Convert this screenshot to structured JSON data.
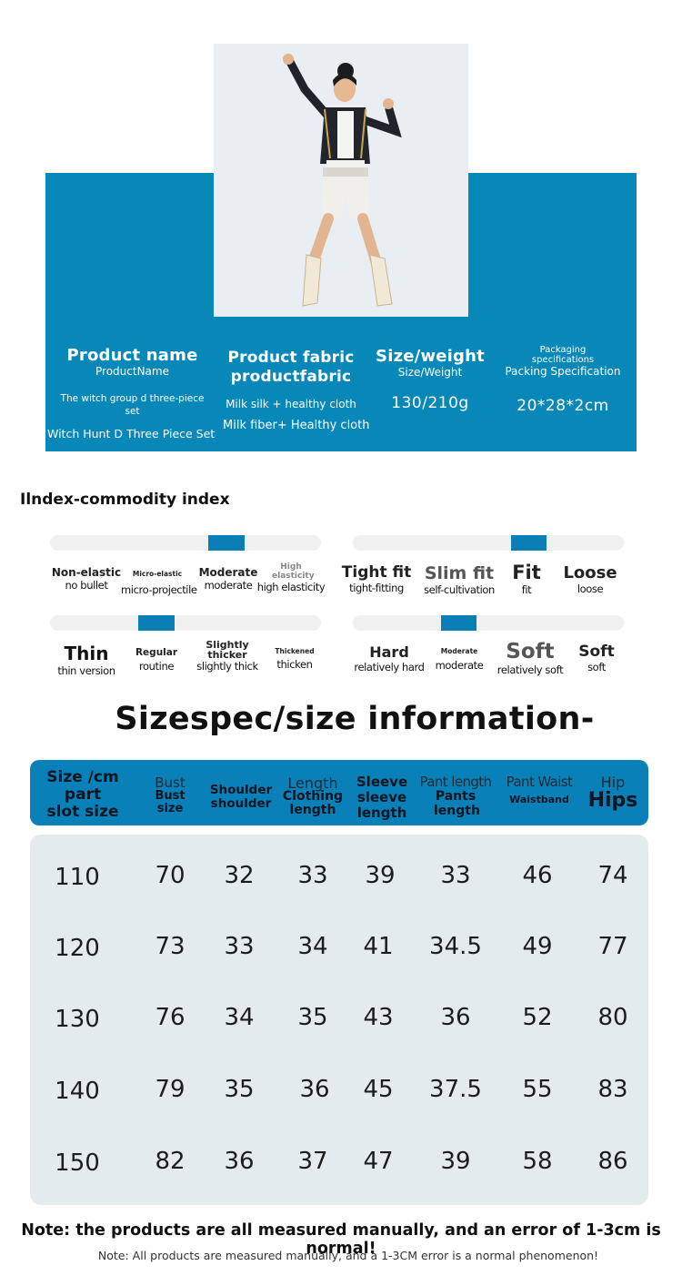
{
  "product": {
    "columns": [
      {
        "title": "Product name",
        "subtitle": "ProductName",
        "values": [
          "The witch group d three-piece set",
          "Witch Hunt D Three Piece Set"
        ]
      },
      {
        "title": "Product fabric productfabric",
        "values": [
          "Milk silk + healthy cloth",
          "Milk fiber+ Healthy cloth"
        ]
      },
      {
        "title": "Size/weight",
        "subtitle": "Size/Weight",
        "values": [
          "130/210g"
        ]
      },
      {
        "title": "Packaging specifications",
        "subtitle": "Packing Specification",
        "values": [
          "20*28*2cm"
        ]
      }
    ]
  },
  "commodity_index": {
    "title": "Ilndex-commodity index",
    "elasticity": {
      "selected_index": 2,
      "options": [
        {
          "main": "Non-elastic",
          "sub": "no bullet"
        },
        {
          "main": "Micro-elastic",
          "sub": "micro-projectile"
        },
        {
          "main": "Moderate",
          "sub": "moderate"
        },
        {
          "main": "High elasticity",
          "sub": "high elasticity"
        }
      ]
    },
    "fit": {
      "selected_index": 2,
      "options": [
        {
          "main": "Tight fit",
          "sub": "tight-fitting"
        },
        {
          "main": "Slim fit",
          "sub": "self-cultivation"
        },
        {
          "main": "Fit",
          "sub": "fit"
        },
        {
          "main": "Loose",
          "sub": "loose"
        }
      ]
    },
    "thickness": {
      "selected_index": 1,
      "options": [
        {
          "main": "Thin",
          "sub": "thin version"
        },
        {
          "main": "Regular",
          "sub": "routine"
        },
        {
          "main": "Slightly thicker",
          "sub": "slightly thick"
        },
        {
          "main": "Thickened",
          "sub": "thicken"
        }
      ]
    },
    "softness": {
      "selected_index": 1,
      "options": [
        {
          "main": "Hard",
          "sub": "relatively hard"
        },
        {
          "main": "Moderate",
          "sub": "moderate"
        },
        {
          "main": "Soft",
          "sub": "relatively soft"
        },
        {
          "main": "Soft",
          "sub": "soft"
        }
      ]
    }
  },
  "size_table": {
    "title": "Sizespec/size information-",
    "headers": [
      {
        "a": "Size /cm",
        "b": "part slot size"
      },
      {
        "a": "Bust",
        "b": "Bust size"
      },
      {
        "a": "",
        "b": "Shoulder shoulder"
      },
      {
        "a": "Length",
        "b": "Clothing length"
      },
      {
        "a": "Sleeve",
        "b": "sleeve length"
      },
      {
        "a": "Pant length",
        "b": "Pants length"
      },
      {
        "a": "Pant Waist",
        "b": "Waistband"
      },
      {
        "a": "Hip",
        "b": "Hips"
      }
    ],
    "rows": [
      [
        "110",
        "70",
        "32",
        "33",
        "39",
        "33",
        "46",
        "74"
      ],
      [
        "120",
        "73",
        "33",
        "34",
        "41",
        "34.5",
        "49",
        "77"
      ],
      [
        "130",
        "76",
        "34",
        "35",
        "43",
        "36",
        "52",
        "80"
      ],
      [
        "140",
        "79",
        "35",
        "36",
        "45",
        "37.5",
        "55",
        "83"
      ],
      [
        "150",
        "82",
        "36",
        "37",
        "47",
        "39",
        "58",
        "86"
      ]
    ]
  },
  "notes": {
    "main": "Note: the products are all measured manually, and an error of 1-3cm is normal!",
    "sub": "Note: All products are measured manually, and a 1-3CM error is a normal phenomenon!"
  },
  "colors": {
    "banner_blue": "#0788b9",
    "index_marker": "#0a7fb6",
    "table_header": "#0a80b9",
    "table_body": "#e4ebef"
  }
}
